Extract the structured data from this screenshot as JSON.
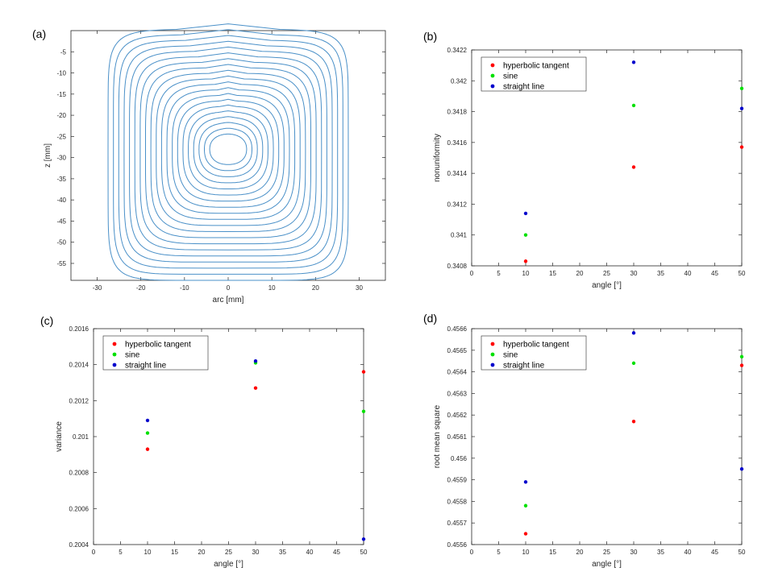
{
  "chart_data": [
    {
      "panel": "(a)",
      "type": "contour",
      "xlabel": "arc [mm]",
      "ylabel": "z [mm]",
      "xlim": [
        -36,
        36
      ],
      "ylim": [
        -59,
        0
      ],
      "xticks": [
        -30,
        -20,
        -10,
        0,
        10,
        20,
        30
      ],
      "yticks": [
        -5,
        -10,
        -15,
        -20,
        -25,
        -30,
        -35,
        -40,
        -45,
        -50,
        -55
      ],
      "line_color": "#4a90c8",
      "center": [
        0,
        -28
      ],
      "contour_count": 20
    },
    {
      "panel": "(b)",
      "type": "scatter",
      "xlabel": "angle [°]",
      "ylabel": "nonuniformity",
      "xlim": [
        0,
        50
      ],
      "ylim": [
        0.3408,
        0.3422
      ],
      "xticks": [
        0,
        5,
        10,
        15,
        20,
        25,
        30,
        35,
        40,
        45,
        50
      ],
      "yticks": [
        0.3408,
        0.341,
        0.3412,
        0.3414,
        0.3416,
        0.3418,
        0.342,
        0.3422
      ],
      "ytick_labels": [
        "0.3408",
        "0.341",
        "0.3412",
        "0.3414",
        "0.3416",
        "0.3418",
        "0.342",
        "0.3422"
      ],
      "legend_position": "top-left",
      "series": [
        {
          "name": "hyperbolic tangent",
          "color": "#ff0000",
          "x": [
            10,
            30,
            50
          ],
          "y": [
            0.34083,
            0.34144,
            0.34157
          ]
        },
        {
          "name": "sine",
          "color": "#00e000",
          "x": [
            10,
            30,
            50
          ],
          "y": [
            0.341,
            0.34184,
            0.34195
          ]
        },
        {
          "name": "straight line",
          "color": "#0000cc",
          "x": [
            10,
            30,
            50
          ],
          "y": [
            0.34114,
            0.34212,
            0.34182
          ]
        }
      ]
    },
    {
      "panel": "(c)",
      "type": "scatter",
      "xlabel": "angle [°]",
      "ylabel": "variance",
      "xlim": [
        0,
        50
      ],
      "ylim": [
        0.2004,
        0.2016
      ],
      "xticks": [
        0,
        5,
        10,
        15,
        20,
        25,
        30,
        35,
        40,
        45,
        50
      ],
      "yticks": [
        0.2004,
        0.2006,
        0.2008,
        0.201,
        0.2012,
        0.2014,
        0.2016
      ],
      "ytick_labels": [
        "0.2004",
        "0.2006",
        "0.2008",
        "0.201",
        "0.2012",
        "0.2014",
        "0.2016"
      ],
      "legend_position": "top-left",
      "series": [
        {
          "name": "hyperbolic tangent",
          "color": "#ff0000",
          "x": [
            10,
            30,
            50
          ],
          "y": [
            0.20093,
            0.20127,
            0.20136
          ]
        },
        {
          "name": "sine",
          "color": "#00e000",
          "x": [
            10,
            30,
            50
          ],
          "y": [
            0.20102,
            0.20141,
            0.20114
          ]
        },
        {
          "name": "straight line",
          "color": "#0000cc",
          "x": [
            10,
            30,
            50
          ],
          "y": [
            0.20109,
            0.20142,
            0.20043
          ]
        }
      ]
    },
    {
      "panel": "(d)",
      "type": "scatter",
      "xlabel": "angle [°]",
      "ylabel": "root mean square",
      "xlim": [
        0,
        50
      ],
      "ylim": [
        0.4556,
        0.4566
      ],
      "xticks": [
        0,
        5,
        10,
        15,
        20,
        25,
        30,
        35,
        40,
        45,
        50
      ],
      "yticks": [
        0.4556,
        0.4557,
        0.4558,
        0.4559,
        0.456,
        0.4561,
        0.4562,
        0.4563,
        0.4564,
        0.4565,
        0.4566
      ],
      "ytick_labels": [
        "0.4556",
        "0.4557",
        "0.4558",
        "0.4559",
        "0.456",
        "0.4561",
        "0.4562",
        "0.4563",
        "0.4564",
        "0.4565",
        "0.4566"
      ],
      "legend_position": "top-left",
      "series": [
        {
          "name": "hyperbolic tangent",
          "color": "#ff0000",
          "x": [
            10,
            30,
            50
          ],
          "y": [
            0.45565,
            0.45617,
            0.45643
          ]
        },
        {
          "name": "sine",
          "color": "#00e000",
          "x": [
            10,
            30,
            50
          ],
          "y": [
            0.45578,
            0.45644,
            0.45647
          ]
        },
        {
          "name": "straight line",
          "color": "#0000cc",
          "x": [
            10,
            30,
            50
          ],
          "y": [
            0.45589,
            0.45658,
            0.45595
          ]
        }
      ]
    }
  ]
}
